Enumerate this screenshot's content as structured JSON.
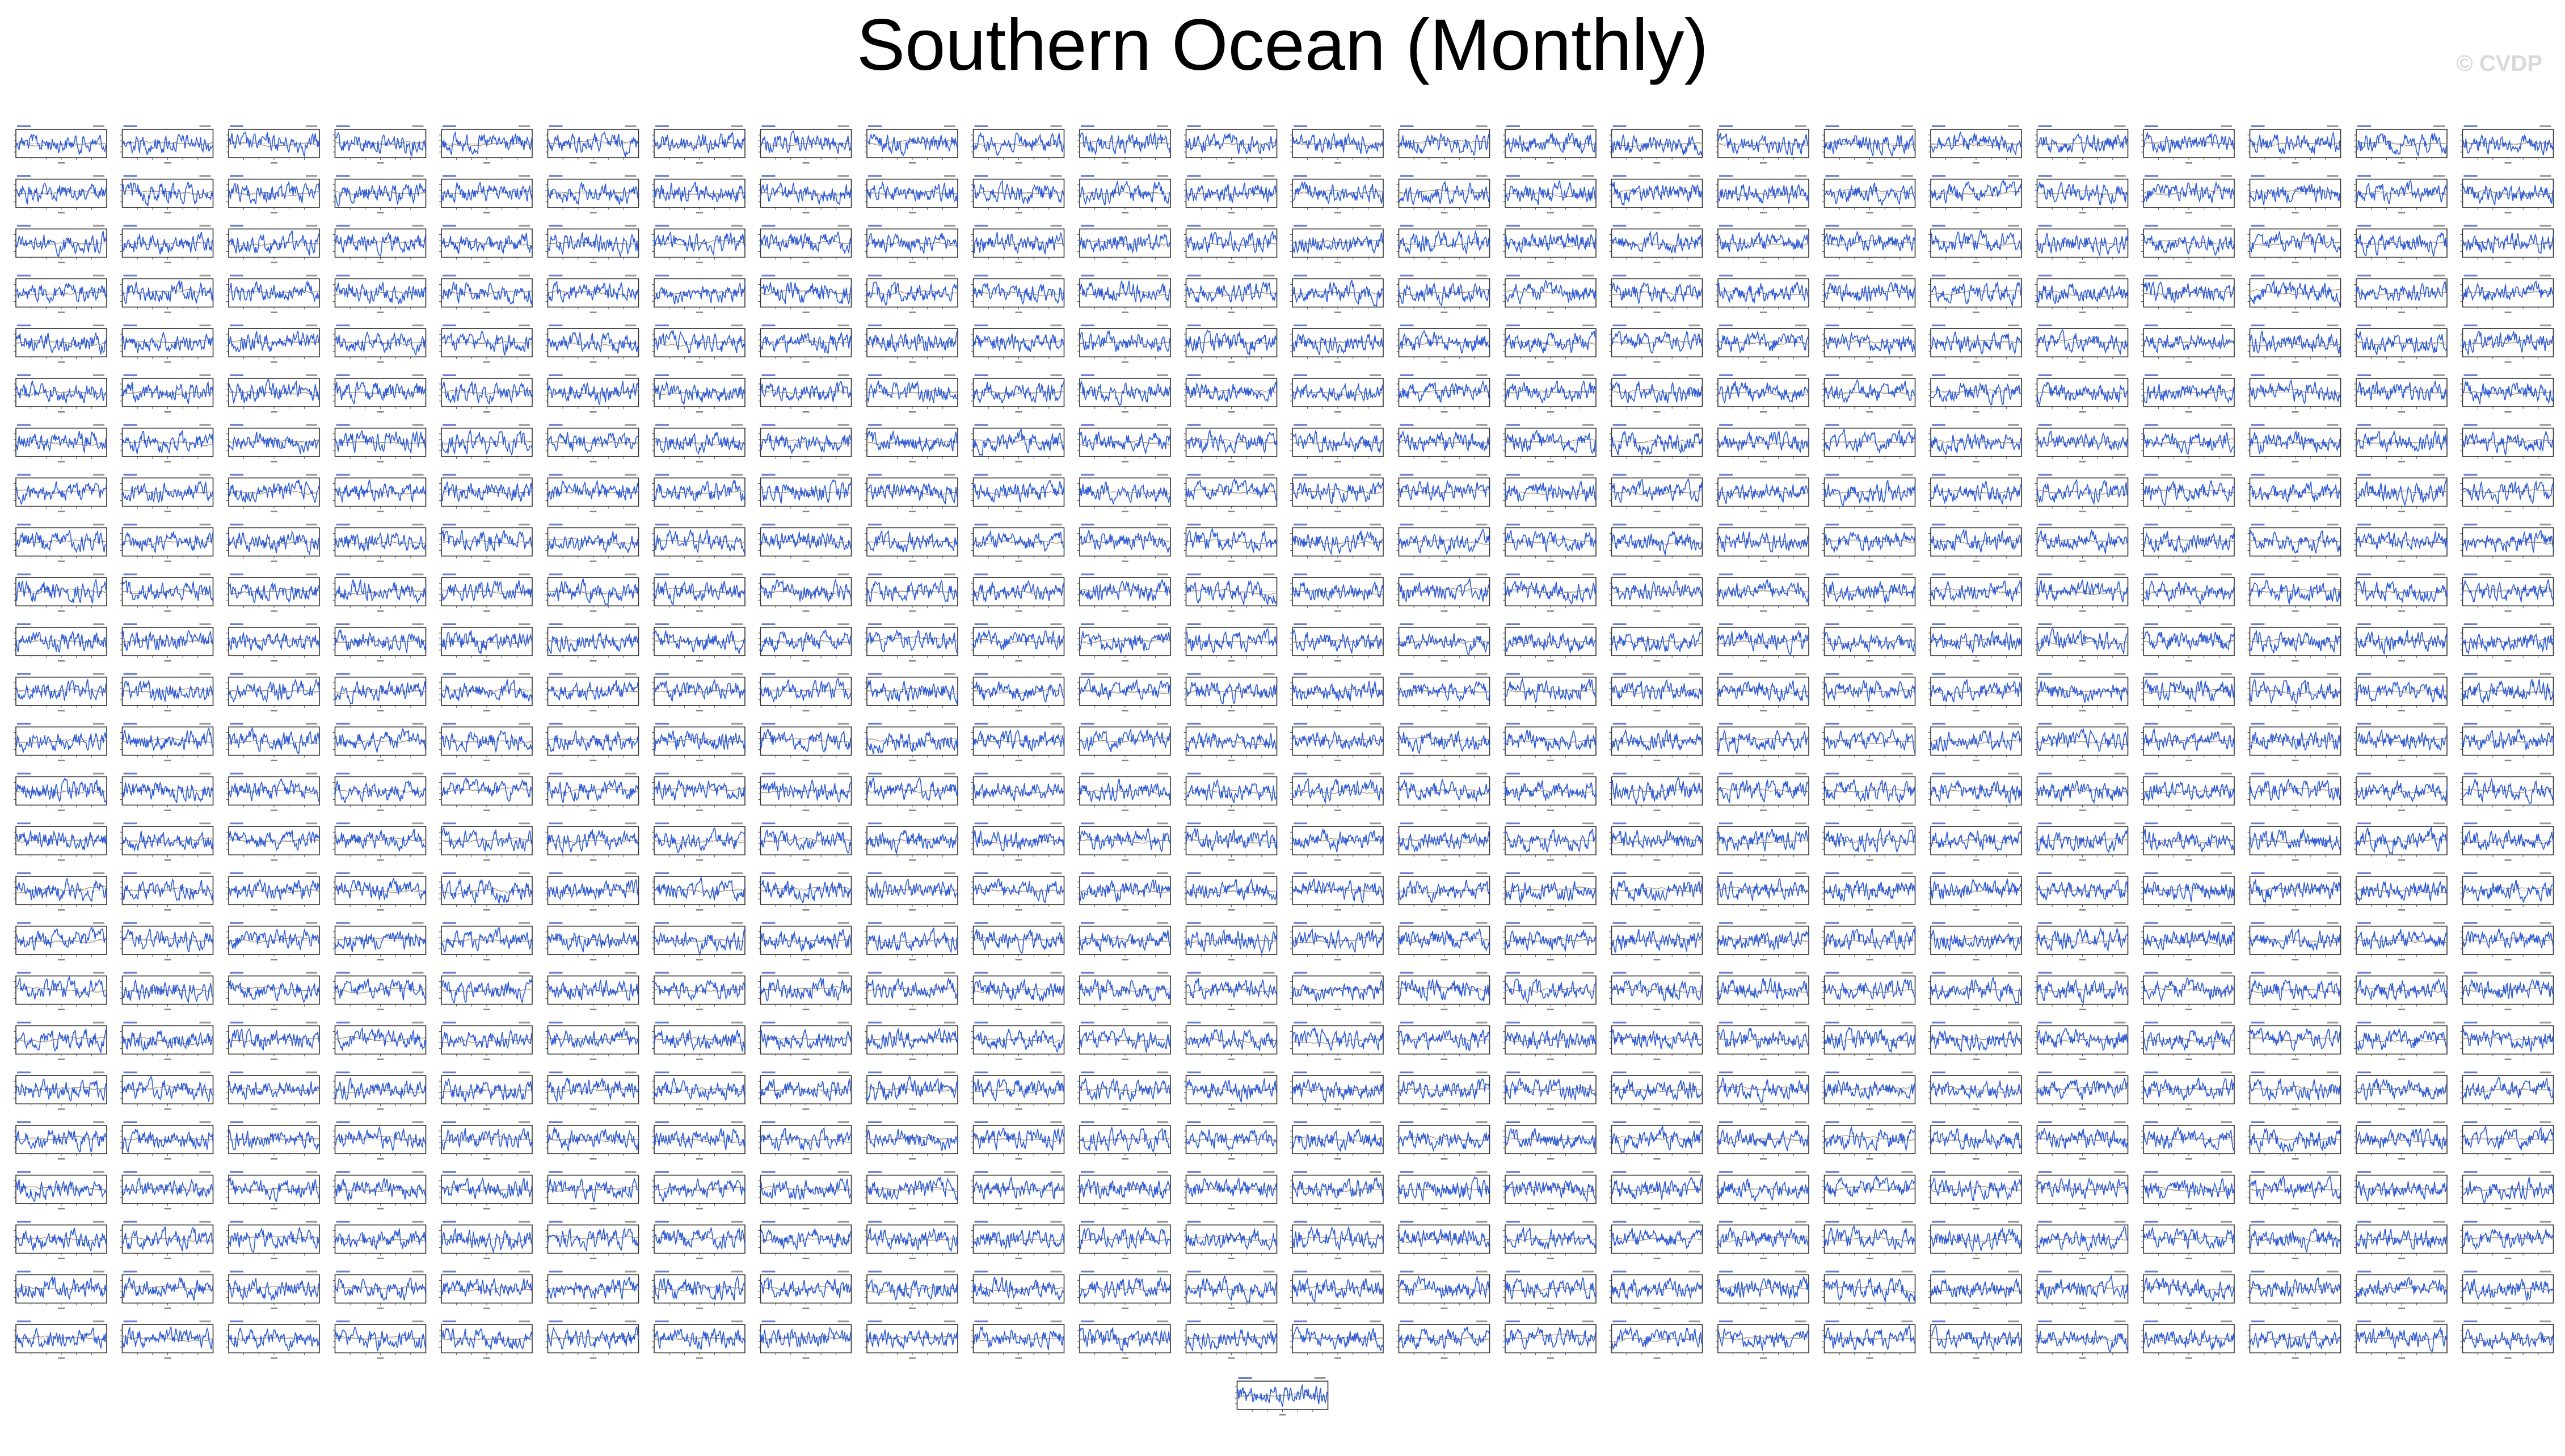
{
  "title": "Southern Ocean (Monthly)",
  "watermark": "© CVDP",
  "colors": {
    "model_series": "#2f5bd6",
    "observed_series": "#a08c6e",
    "panel_frame": "#333333",
    "zero_line": "#999999"
  },
  "chart_data": {
    "type": "line",
    "title": "Southern Ocean (Monthly)",
    "layout": "small-multiples",
    "grid_rows": 25,
    "grid_cols": 24,
    "extra_panels_centered_below": 1,
    "panel_count": 601,
    "series": [
      {
        "color": "#2f5bd6"
      },
      {
        "color": "#a08c6e"
      }
    ],
    "grid": false,
    "note_unreadable": "Per-panel titles, tick labels and values are too small to read at this resolution."
  }
}
